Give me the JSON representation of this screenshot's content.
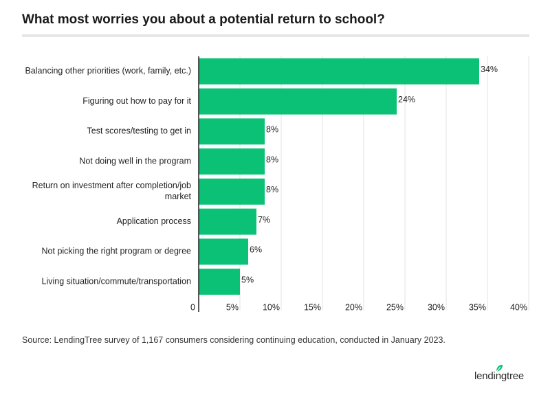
{
  "chart_data": {
    "type": "bar",
    "orientation": "horizontal",
    "title": "What most worries you about a potential return to school?",
    "categories": [
      "Balancing other priorities (work, family, etc.)",
      "Figuring out how to pay for it",
      "Test scores/testing to get in",
      "Not doing well in the program",
      "Return on investment after completion/job market",
      "Application process",
      "Not picking the right program or degree",
      "Living situation/commute/transportation"
    ],
    "category_lines": [
      [
        "Balancing other priorities (work, family, etc.)"
      ],
      [
        "Figuring out how to pay for it"
      ],
      [
        "Test scores/testing to get in"
      ],
      [
        "Not doing well in the program"
      ],
      [
        "Return on investment after completion/job",
        "market"
      ],
      [
        "Application process"
      ],
      [
        "Not picking the right program or degree"
      ],
      [
        "Living situation/commute/transportation"
      ]
    ],
    "values": [
      34,
      24,
      8,
      8,
      8,
      7,
      6,
      5
    ],
    "value_labels": [
      "34%",
      "24%",
      "8%",
      "8%",
      "8%",
      "7%",
      "6%",
      "5%"
    ],
    "xlim": [
      0,
      40
    ],
    "xticks": [
      0,
      5,
      10,
      15,
      20,
      25,
      30,
      35,
      40
    ],
    "xtick_labels": [
      "0",
      "5%",
      "10%",
      "15%",
      "20%",
      "25%",
      "30%",
      "35%",
      "40%"
    ],
    "xlabel": "",
    "ylabel": "",
    "grid": true,
    "legend": "none"
  },
  "source": "Source: LendingTree survey of 1,167 consumers considering continuing education, conducted in January 2023.",
  "brand": {
    "name": "lendingtree"
  },
  "colors": {
    "bar": "#0bc175",
    "grid": "#e3e3e3",
    "axis": "#222222",
    "brand_leaf": "#0bc175"
  }
}
